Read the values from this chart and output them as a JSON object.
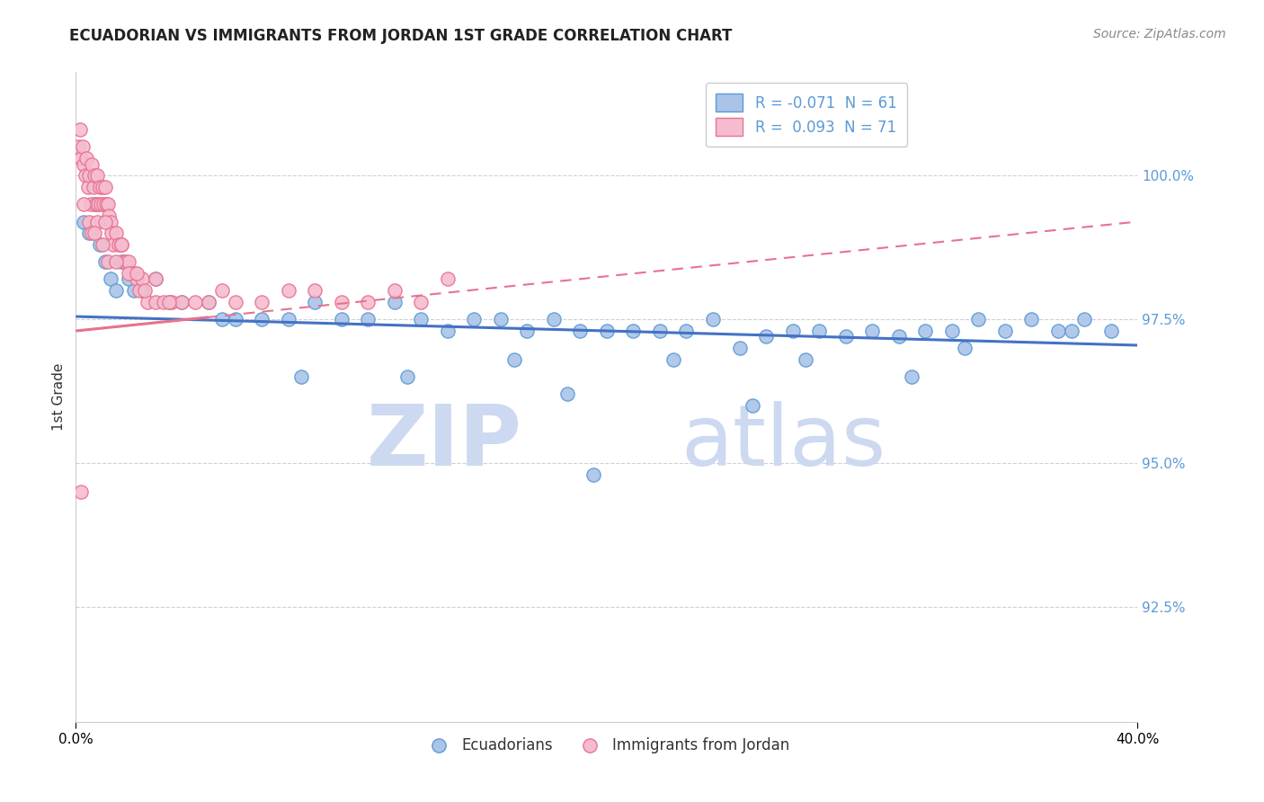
{
  "title": "ECUADORIAN VS IMMIGRANTS FROM JORDAN 1ST GRADE CORRELATION CHART",
  "source_text": "Source: ZipAtlas.com",
  "ylabel": "1st Grade",
  "xlim": [
    0.0,
    40.0
  ],
  "ylim": [
    90.5,
    101.8
  ],
  "legend_r1": "R = -0.071  N = 61",
  "legend_r2": "R =  0.093  N = 71",
  "blue_scatter_x": [
    0.3,
    0.5,
    0.7,
    0.9,
    1.1,
    1.3,
    1.5,
    1.7,
    2.0,
    2.2,
    2.5,
    3.0,
    3.5,
    4.0,
    5.0,
    5.5,
    6.0,
    7.0,
    8.0,
    9.0,
    10.0,
    11.0,
    12.0,
    13.0,
    14.0,
    15.0,
    16.0,
    17.0,
    18.0,
    19.0,
    20.0,
    21.0,
    22.0,
    23.0,
    24.0,
    25.0,
    26.0,
    27.0,
    28.0,
    29.0,
    30.0,
    31.0,
    32.0,
    33.0,
    34.0,
    35.0,
    36.0,
    37.0,
    38.0,
    39.0,
    8.5,
    18.5,
    25.5,
    33.5,
    22.5,
    16.5,
    12.5,
    27.5,
    31.5,
    37.5,
    19.5
  ],
  "blue_scatter_y": [
    99.2,
    99.0,
    99.5,
    98.8,
    98.5,
    98.2,
    98.0,
    98.5,
    98.2,
    98.0,
    98.0,
    98.2,
    97.8,
    97.8,
    97.8,
    97.5,
    97.5,
    97.5,
    97.5,
    97.8,
    97.5,
    97.5,
    97.8,
    97.5,
    97.3,
    97.5,
    97.5,
    97.3,
    97.5,
    97.3,
    97.3,
    97.3,
    97.3,
    97.3,
    97.5,
    97.0,
    97.2,
    97.3,
    97.3,
    97.2,
    97.3,
    97.2,
    97.3,
    97.3,
    97.5,
    97.3,
    97.5,
    97.3,
    97.5,
    97.3,
    96.5,
    96.2,
    96.0,
    97.0,
    96.8,
    96.8,
    96.5,
    96.8,
    96.5,
    97.3,
    94.8
  ],
  "pink_scatter_x": [
    0.1,
    0.15,
    0.2,
    0.25,
    0.3,
    0.35,
    0.4,
    0.45,
    0.5,
    0.55,
    0.6,
    0.65,
    0.7,
    0.75,
    0.8,
    0.85,
    0.9,
    0.95,
    1.0,
    1.05,
    1.1,
    1.15,
    1.2,
    1.25,
    1.3,
    1.35,
    1.4,
    1.5,
    1.6,
    1.7,
    1.8,
    1.9,
    2.0,
    2.1,
    2.2,
    2.3,
    2.4,
    2.5,
    2.7,
    3.0,
    3.3,
    3.6,
    4.0,
    4.5,
    5.0,
    5.5,
    6.0,
    7.0,
    8.0,
    9.0,
    10.0,
    11.0,
    12.0,
    13.0,
    14.0,
    0.5,
    0.6,
    0.8,
    1.0,
    1.2,
    1.5,
    1.7,
    2.0,
    2.3,
    2.6,
    3.0,
    3.5,
    0.3,
    0.7,
    1.1,
    0.2
  ],
  "pink_scatter_y": [
    100.5,
    100.8,
    100.3,
    100.5,
    100.2,
    100.0,
    100.3,
    99.8,
    100.0,
    99.5,
    100.2,
    99.8,
    100.0,
    99.5,
    100.0,
    99.5,
    99.8,
    99.5,
    99.8,
    99.5,
    99.8,
    99.5,
    99.5,
    99.3,
    99.2,
    99.0,
    98.8,
    99.0,
    98.8,
    98.8,
    98.5,
    98.5,
    98.5,
    98.3,
    98.3,
    98.2,
    98.0,
    98.2,
    97.8,
    97.8,
    97.8,
    97.8,
    97.8,
    97.8,
    97.8,
    98.0,
    97.8,
    97.8,
    98.0,
    98.0,
    97.8,
    97.8,
    98.0,
    97.8,
    98.2,
    99.2,
    99.0,
    99.2,
    98.8,
    98.5,
    98.5,
    98.8,
    98.3,
    98.3,
    98.0,
    98.2,
    97.8,
    99.5,
    99.0,
    99.2,
    94.5
  ],
  "blue_color": "#aac4e8",
  "pink_color": "#f5bcd0",
  "blue_edge_color": "#5b9bd5",
  "pink_edge_color": "#e8728e",
  "blue_line_color": "#4472c4",
  "pink_line_color": "#e8728e",
  "watermark_zip": "ZIP",
  "watermark_atlas": "atlas",
  "watermark_color": "#ccd9f0",
  "background_color": "#ffffff",
  "grid_color": "#d0d0d0",
  "blue_trend_y0": 97.55,
  "blue_trend_y1": 97.05,
  "pink_trend_y0": 97.3,
  "pink_trend_y1": 99.2
}
